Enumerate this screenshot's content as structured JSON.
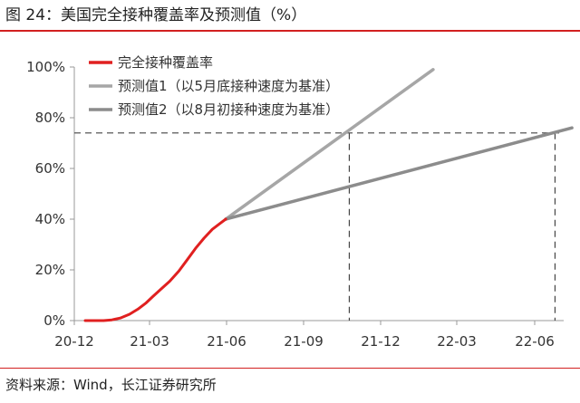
{
  "title": "图 24：美国完全接种覆盖率及预测值（%）",
  "source": "资料来源：Wind，长江证券研究所",
  "chart_data": {
    "type": "line",
    "title": "",
    "xlabel": "",
    "ylabel": "",
    "x_ticks": [
      "20-12",
      "21-03",
      "21-06",
      "21-09",
      "21-12",
      "22-03",
      "22-06"
    ],
    "y_ticks": [
      "0%",
      "20%",
      "40%",
      "60%",
      "80%",
      "100%"
    ],
    "ylim": [
      0,
      100
    ],
    "grid": false,
    "legend_position": "top-left",
    "series": [
      {
        "name": "完全接种覆盖率",
        "color": "#e02020",
        "points": [
          [
            "2020-12-14",
            0
          ],
          [
            "2021-01-05",
            0
          ],
          [
            "2021-01-15",
            0.3
          ],
          [
            "2021-01-25",
            1.0
          ],
          [
            "2021-02-05",
            2.5
          ],
          [
            "2021-02-15",
            4.5
          ],
          [
            "2021-02-25",
            7.0
          ],
          [
            "2021-03-05",
            9.5
          ],
          [
            "2021-03-15",
            12.5
          ],
          [
            "2021-03-25",
            15.5
          ],
          [
            "2021-04-05",
            19.5
          ],
          [
            "2021-04-15",
            24.0
          ],
          [
            "2021-04-25",
            28.5
          ],
          [
            "2021-05-05",
            32.5
          ],
          [
            "2021-05-15",
            36.0
          ],
          [
            "2021-05-25",
            38.5
          ],
          [
            "2021-05-31",
            40.0
          ]
        ]
      },
      {
        "name": "预测值1（以5月底接种速度为基准）",
        "color": "#a6a6a6",
        "points": [
          [
            "2021-05-31",
            40.0
          ],
          [
            "2022-02-01",
            99.0
          ]
        ]
      },
      {
        "name": "预测值2（以8月初接种速度为基准）",
        "color": "#8c8c8c",
        "points": [
          [
            "2021-05-31",
            40.0
          ],
          [
            "2022-07-15",
            76.0
          ]
        ]
      }
    ],
    "reference_lines": {
      "y_value": 74,
      "x_values": [
        "2021-10-25",
        "2022-06-25"
      ]
    }
  }
}
